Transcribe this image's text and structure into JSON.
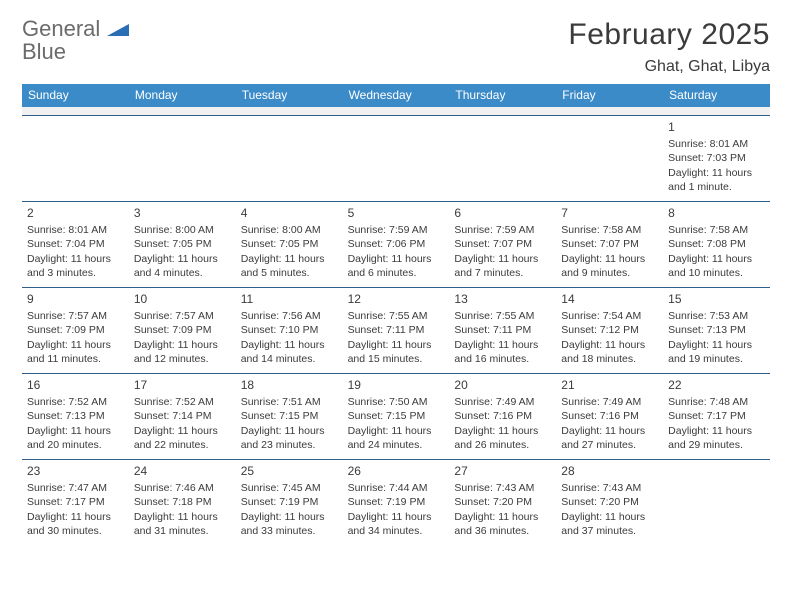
{
  "brand": {
    "word1": "General",
    "word2": "Blue",
    "word1_color": "#6b6b6b",
    "word2_color": "#2a6fb5",
    "mark_color": "#2a6fb5"
  },
  "header": {
    "month_title": "February 2025",
    "location": "Ghat, Ghat, Libya"
  },
  "styling": {
    "page_bg": "#ffffff",
    "header_band_bg": "#3b8bc9",
    "header_band_text": "#ffffff",
    "row_divider": "#2f5e88",
    "blank_row_bg": "#f1f1f1",
    "body_text": "#3b3b3b",
    "weekday_fontsize": 12,
    "daynum_fontsize": 12,
    "detail_fontsize": 10.5
  },
  "weekdays": [
    "Sunday",
    "Monday",
    "Tuesday",
    "Wednesday",
    "Thursday",
    "Friday",
    "Saturday"
  ],
  "weeks": [
    [
      null,
      null,
      null,
      null,
      null,
      null,
      {
        "n": "1",
        "sunrise": "Sunrise: 8:01 AM",
        "sunset": "Sunset: 7:03 PM",
        "daylight1": "Daylight: 11 hours",
        "daylight2": "and 1 minute."
      }
    ],
    [
      {
        "n": "2",
        "sunrise": "Sunrise: 8:01 AM",
        "sunset": "Sunset: 7:04 PM",
        "daylight1": "Daylight: 11 hours",
        "daylight2": "and 3 minutes."
      },
      {
        "n": "3",
        "sunrise": "Sunrise: 8:00 AM",
        "sunset": "Sunset: 7:05 PM",
        "daylight1": "Daylight: 11 hours",
        "daylight2": "and 4 minutes."
      },
      {
        "n": "4",
        "sunrise": "Sunrise: 8:00 AM",
        "sunset": "Sunset: 7:05 PM",
        "daylight1": "Daylight: 11 hours",
        "daylight2": "and 5 minutes."
      },
      {
        "n": "5",
        "sunrise": "Sunrise: 7:59 AM",
        "sunset": "Sunset: 7:06 PM",
        "daylight1": "Daylight: 11 hours",
        "daylight2": "and 6 minutes."
      },
      {
        "n": "6",
        "sunrise": "Sunrise: 7:59 AM",
        "sunset": "Sunset: 7:07 PM",
        "daylight1": "Daylight: 11 hours",
        "daylight2": "and 7 minutes."
      },
      {
        "n": "7",
        "sunrise": "Sunrise: 7:58 AM",
        "sunset": "Sunset: 7:07 PM",
        "daylight1": "Daylight: 11 hours",
        "daylight2": "and 9 minutes."
      },
      {
        "n": "8",
        "sunrise": "Sunrise: 7:58 AM",
        "sunset": "Sunset: 7:08 PM",
        "daylight1": "Daylight: 11 hours",
        "daylight2": "and 10 minutes."
      }
    ],
    [
      {
        "n": "9",
        "sunrise": "Sunrise: 7:57 AM",
        "sunset": "Sunset: 7:09 PM",
        "daylight1": "Daylight: 11 hours",
        "daylight2": "and 11 minutes."
      },
      {
        "n": "10",
        "sunrise": "Sunrise: 7:57 AM",
        "sunset": "Sunset: 7:09 PM",
        "daylight1": "Daylight: 11 hours",
        "daylight2": "and 12 minutes."
      },
      {
        "n": "11",
        "sunrise": "Sunrise: 7:56 AM",
        "sunset": "Sunset: 7:10 PM",
        "daylight1": "Daylight: 11 hours",
        "daylight2": "and 14 minutes."
      },
      {
        "n": "12",
        "sunrise": "Sunrise: 7:55 AM",
        "sunset": "Sunset: 7:11 PM",
        "daylight1": "Daylight: 11 hours",
        "daylight2": "and 15 minutes."
      },
      {
        "n": "13",
        "sunrise": "Sunrise: 7:55 AM",
        "sunset": "Sunset: 7:11 PM",
        "daylight1": "Daylight: 11 hours",
        "daylight2": "and 16 minutes."
      },
      {
        "n": "14",
        "sunrise": "Sunrise: 7:54 AM",
        "sunset": "Sunset: 7:12 PM",
        "daylight1": "Daylight: 11 hours",
        "daylight2": "and 18 minutes."
      },
      {
        "n": "15",
        "sunrise": "Sunrise: 7:53 AM",
        "sunset": "Sunset: 7:13 PM",
        "daylight1": "Daylight: 11 hours",
        "daylight2": "and 19 minutes."
      }
    ],
    [
      {
        "n": "16",
        "sunrise": "Sunrise: 7:52 AM",
        "sunset": "Sunset: 7:13 PM",
        "daylight1": "Daylight: 11 hours",
        "daylight2": "and 20 minutes."
      },
      {
        "n": "17",
        "sunrise": "Sunrise: 7:52 AM",
        "sunset": "Sunset: 7:14 PM",
        "daylight1": "Daylight: 11 hours",
        "daylight2": "and 22 minutes."
      },
      {
        "n": "18",
        "sunrise": "Sunrise: 7:51 AM",
        "sunset": "Sunset: 7:15 PM",
        "daylight1": "Daylight: 11 hours",
        "daylight2": "and 23 minutes."
      },
      {
        "n": "19",
        "sunrise": "Sunrise: 7:50 AM",
        "sunset": "Sunset: 7:15 PM",
        "daylight1": "Daylight: 11 hours",
        "daylight2": "and 24 minutes."
      },
      {
        "n": "20",
        "sunrise": "Sunrise: 7:49 AM",
        "sunset": "Sunset: 7:16 PM",
        "daylight1": "Daylight: 11 hours",
        "daylight2": "and 26 minutes."
      },
      {
        "n": "21",
        "sunrise": "Sunrise: 7:49 AM",
        "sunset": "Sunset: 7:16 PM",
        "daylight1": "Daylight: 11 hours",
        "daylight2": "and 27 minutes."
      },
      {
        "n": "22",
        "sunrise": "Sunrise: 7:48 AM",
        "sunset": "Sunset: 7:17 PM",
        "daylight1": "Daylight: 11 hours",
        "daylight2": "and 29 minutes."
      }
    ],
    [
      {
        "n": "23",
        "sunrise": "Sunrise: 7:47 AM",
        "sunset": "Sunset: 7:17 PM",
        "daylight1": "Daylight: 11 hours",
        "daylight2": "and 30 minutes."
      },
      {
        "n": "24",
        "sunrise": "Sunrise: 7:46 AM",
        "sunset": "Sunset: 7:18 PM",
        "daylight1": "Daylight: 11 hours",
        "daylight2": "and 31 minutes."
      },
      {
        "n": "25",
        "sunrise": "Sunrise: 7:45 AM",
        "sunset": "Sunset: 7:19 PM",
        "daylight1": "Daylight: 11 hours",
        "daylight2": "and 33 minutes."
      },
      {
        "n": "26",
        "sunrise": "Sunrise: 7:44 AM",
        "sunset": "Sunset: 7:19 PM",
        "daylight1": "Daylight: 11 hours",
        "daylight2": "and 34 minutes."
      },
      {
        "n": "27",
        "sunrise": "Sunrise: 7:43 AM",
        "sunset": "Sunset: 7:20 PM",
        "daylight1": "Daylight: 11 hours",
        "daylight2": "and 36 minutes."
      },
      {
        "n": "28",
        "sunrise": "Sunrise: 7:43 AM",
        "sunset": "Sunset: 7:20 PM",
        "daylight1": "Daylight: 11 hours",
        "daylight2": "and 37 minutes."
      },
      null
    ]
  ]
}
